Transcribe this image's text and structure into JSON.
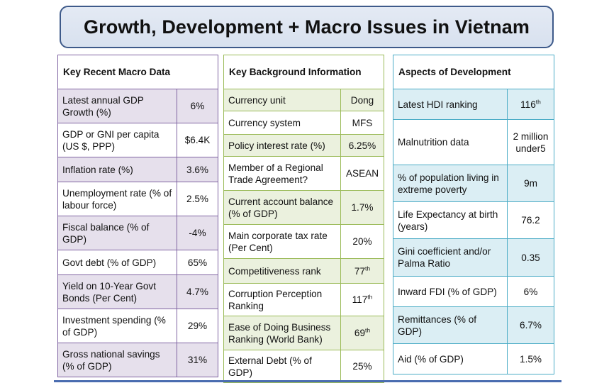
{
  "title": "Growth, Development + Macro Issues in Vietnam",
  "colors": {
    "macro_border": "#8064a2",
    "macro_shade": "#e6e0ec",
    "background_border": "#9bbb59",
    "background_shade": "#ebf1de",
    "development_border": "#4bacc6",
    "development_shade": "#dbeef4",
    "title_border": "#3e5a8a",
    "title_fill": "#dce3f0"
  },
  "macro": {
    "heading": "Key Recent Macro Data",
    "rows": [
      {
        "label": "Latest annual GDP Growth (%)",
        "value": "6%"
      },
      {
        "label": "GDP or GNI per capita (US $, PPP)",
        "value": "$6.4K"
      },
      {
        "label": "Inflation rate (%)",
        "value": "3.6%"
      },
      {
        "label": "Unemployment rate (% of labour force)",
        "value": "2.5%"
      },
      {
        "label": "Fiscal balance (% of GDP)",
        "value": "-4%"
      },
      {
        "label": "Govt debt (% of GDP)",
        "value": "65%"
      },
      {
        "label": "Yield on 10-Year Govt Bonds (Per Cent)",
        "value": "4.7%"
      },
      {
        "label": "Investment spending (% of GDP)",
        "value": "29%"
      },
      {
        "label": "Gross national savings (% of GDP)",
        "value": "31%"
      }
    ]
  },
  "background": {
    "heading": "Key Background Information",
    "rows": [
      {
        "label": "Currency unit",
        "value": "Dong"
      },
      {
        "label": "Currency system",
        "value": "MFS"
      },
      {
        "label": "Policy interest rate (%)",
        "value": "6.25%"
      },
      {
        "label": "Member of a Regional Trade Agreement?",
        "value": "ASEAN"
      },
      {
        "label": "Current account balance (% of GDP)",
        "value": "1.7%"
      },
      {
        "label": "Main corporate tax rate (Per Cent)",
        "value": "20%"
      },
      {
        "label": "Competitiveness rank",
        "value": "77",
        "suffix": "th"
      },
      {
        "label": "Corruption Perception Ranking",
        "value": "117",
        "suffix": "th"
      },
      {
        "label": "Ease of Doing Business Ranking (World Bank)",
        "value": "69",
        "suffix": "th"
      },
      {
        "label": "External Debt (% of GDP)",
        "value": "25%"
      }
    ]
  },
  "development": {
    "heading": "Aspects of Development",
    "rows": [
      {
        "label": "Latest HDI ranking",
        "value": "116",
        "suffix": "th"
      },
      {
        "label": "Malnutrition data",
        "value": "2 million under5"
      },
      {
        "label": "% of population living in extreme poverty",
        "value": "9m"
      },
      {
        "label": "Life Expectancy at birth (years)",
        "value": "76.2"
      },
      {
        "label": "Gini coefficient and/or Palma Ratio",
        "value": "0.35"
      },
      {
        "label": "Inward FDI (% of GDP)",
        "value": "6%"
      },
      {
        "label": "Remittances (% of GDP)",
        "value": "6.7%"
      },
      {
        "label": "Aid (% of GDP)",
        "value": "1.5%"
      }
    ]
  }
}
